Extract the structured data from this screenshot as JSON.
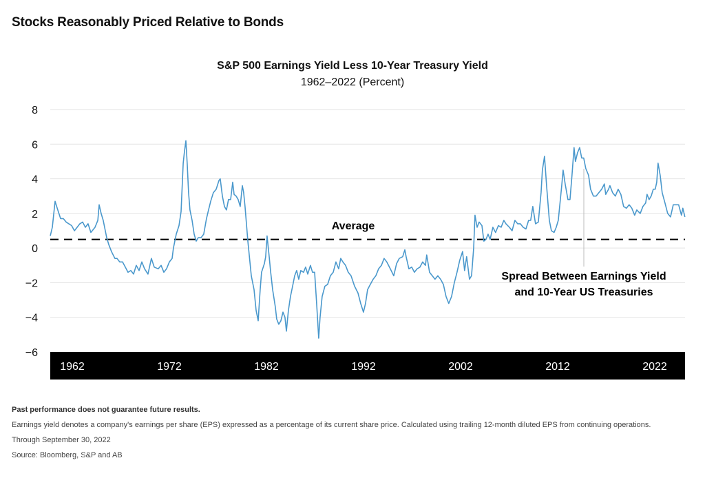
{
  "header": {
    "title": "Stocks Reasonably Priced Relative to Bonds"
  },
  "chart_data": {
    "type": "line",
    "title": "S&P 500 Earnings Yield Less 10-Year Treasury Yield",
    "subtitle": "1962–2022 (Percent)",
    "xlabel": "",
    "ylabel": "",
    "xlim": [
      1962,
      2022.75
    ],
    "ylim": [
      -6,
      8
    ],
    "y_ticks": [
      "8",
      "6",
      "4",
      "2",
      "0",
      "−2",
      "−4",
      "−6"
    ],
    "y_tick_values": [
      8,
      6,
      4,
      2,
      0,
      -2,
      -4,
      -6
    ],
    "x_tick_labels": [
      "1962",
      "1972",
      "1982",
      "1992",
      "2002",
      "2012",
      "2022"
    ],
    "grid": true,
    "line_color": "#4a98cc",
    "average": {
      "label": "Average",
      "value": 0.5
    },
    "series": [
      {
        "annotation": "Spread Between Earnings Yield\nand 10-Year US Treasuries",
        "annotation_line1": "Spread Between Earnings Yield",
        "annotation_line2": "and 10-Year US Treasuries",
        "points": [
          [
            1962.0,
            0.7
          ],
          [
            1962.2,
            1.2
          ],
          [
            1962.46,
            2.7
          ],
          [
            1962.72,
            2.2
          ],
          [
            1962.99,
            1.7
          ],
          [
            1963.25,
            1.7
          ],
          [
            1963.52,
            1.5
          ],
          [
            1963.78,
            1.4
          ],
          [
            1964.04,
            1.3
          ],
          [
            1964.31,
            1.0
          ],
          [
            1964.57,
            1.2
          ],
          [
            1964.83,
            1.4
          ],
          [
            1965.1,
            1.5
          ],
          [
            1965.36,
            1.2
          ],
          [
            1965.62,
            1.4
          ],
          [
            1965.89,
            0.9
          ],
          [
            1966.28,
            1.2
          ],
          [
            1966.55,
            1.6
          ],
          [
            1966.68,
            2.5
          ],
          [
            1966.87,
            2.0
          ],
          [
            1967.07,
            1.6
          ],
          [
            1967.4,
            0.6
          ],
          [
            1967.6,
            0.2
          ],
          [
            1967.86,
            -0.2
          ],
          [
            1968.19,
            -0.6
          ],
          [
            1968.39,
            -0.6
          ],
          [
            1968.65,
            -0.8
          ],
          [
            1968.92,
            -0.8
          ],
          [
            1969.18,
            -1.1
          ],
          [
            1969.44,
            -1.4
          ],
          [
            1969.71,
            -1.3
          ],
          [
            1969.97,
            -1.5
          ],
          [
            1970.23,
            -1.0
          ],
          [
            1970.5,
            -1.3
          ],
          [
            1970.76,
            -0.8
          ],
          [
            1971.03,
            -1.2
          ],
          [
            1971.35,
            -1.5
          ],
          [
            1971.68,
            -0.6
          ],
          [
            1971.95,
            -1.1
          ],
          [
            1972.34,
            -1.2
          ],
          [
            1972.61,
            -1.0
          ],
          [
            1972.87,
            -1.4
          ],
          [
            1973.13,
            -1.2
          ],
          [
            1973.4,
            -0.8
          ],
          [
            1973.66,
            -0.6
          ],
          [
            1973.79,
            0.0
          ],
          [
            1974.06,
            0.8
          ],
          [
            1974.32,
            1.3
          ],
          [
            1974.52,
            2.1
          ],
          [
            1974.72,
            4.9
          ],
          [
            1974.85,
            5.6
          ],
          [
            1974.98,
            6.2
          ],
          [
            1975.11,
            4.8
          ],
          [
            1975.24,
            3.2
          ],
          [
            1975.37,
            2.2
          ],
          [
            1975.57,
            1.6
          ],
          [
            1975.77,
            0.8
          ],
          [
            1975.97,
            0.4
          ],
          [
            1976.16,
            0.6
          ],
          [
            1976.43,
            0.6
          ],
          [
            1976.69,
            0.8
          ],
          [
            1976.95,
            1.7
          ],
          [
            1977.15,
            2.2
          ],
          [
            1977.35,
            2.7
          ],
          [
            1977.61,
            3.2
          ],
          [
            1977.88,
            3.4
          ],
          [
            1978.14,
            3.9
          ],
          [
            1978.27,
            4.0
          ],
          [
            1978.47,
            3.0
          ],
          [
            1978.67,
            2.4
          ],
          [
            1978.86,
            2.2
          ],
          [
            1979.06,
            2.8
          ],
          [
            1979.26,
            2.8
          ],
          [
            1979.46,
            3.8
          ],
          [
            1979.59,
            3.1
          ],
          [
            1979.79,
            3.0
          ],
          [
            1979.98,
            2.8
          ],
          [
            1980.18,
            2.4
          ],
          [
            1980.38,
            3.6
          ],
          [
            1980.51,
            3.2
          ],
          [
            1980.64,
            2.4
          ],
          [
            1980.91,
            0.4
          ],
          [
            1981.24,
            -1.6
          ],
          [
            1981.5,
            -2.4
          ],
          [
            1981.7,
            -3.6
          ],
          [
            1981.9,
            -4.2
          ],
          [
            1982.09,
            -2.4
          ],
          [
            1982.22,
            -1.4
          ],
          [
            1982.49,
            -0.9
          ],
          [
            1982.62,
            -0.5
          ],
          [
            1982.75,
            0.7
          ],
          [
            1982.95,
            -0.5
          ],
          [
            1983.08,
            -1.3
          ],
          [
            1983.28,
            -2.4
          ],
          [
            1983.54,
            -3.4
          ],
          [
            1983.67,
            -4.1
          ],
          [
            1983.87,
            -4.4
          ],
          [
            1984.07,
            -4.2
          ],
          [
            1984.27,
            -3.7
          ],
          [
            1984.46,
            -4.0
          ],
          [
            1984.6,
            -4.8
          ],
          [
            1984.79,
            -3.6
          ],
          [
            1984.99,
            -2.8
          ],
          [
            1985.19,
            -2.2
          ],
          [
            1985.39,
            -1.6
          ],
          [
            1985.58,
            -1.3
          ],
          [
            1985.78,
            -1.8
          ],
          [
            1985.98,
            -1.3
          ],
          [
            1986.24,
            -1.4
          ],
          [
            1986.44,
            -1.1
          ],
          [
            1986.64,
            -1.5
          ],
          [
            1986.9,
            -1.0
          ],
          [
            1987.1,
            -1.4
          ],
          [
            1987.3,
            -1.4
          ],
          [
            1987.49,
            -3.2
          ],
          [
            1987.69,
            -5.2
          ],
          [
            1987.82,
            -4.0
          ],
          [
            1988.02,
            -2.8
          ],
          [
            1988.28,
            -2.2
          ],
          [
            1988.55,
            -2.1
          ],
          [
            1988.81,
            -1.6
          ],
          [
            1989.08,
            -1.4
          ],
          [
            1989.34,
            -0.8
          ],
          [
            1989.6,
            -1.2
          ],
          [
            1989.8,
            -0.6
          ],
          [
            1990.0,
            -0.8
          ],
          [
            1990.26,
            -1.0
          ],
          [
            1990.52,
            -1.4
          ],
          [
            1990.79,
            -1.6
          ],
          [
            1991.12,
            -2.2
          ],
          [
            1991.45,
            -2.6
          ],
          [
            1991.71,
            -3.2
          ],
          [
            1991.97,
            -3.7
          ],
          [
            1992.17,
            -3.2
          ],
          [
            1992.37,
            -2.4
          ],
          [
            1992.63,
            -2.1
          ],
          [
            1992.9,
            -1.8
          ],
          [
            1993.16,
            -1.6
          ],
          [
            1993.42,
            -1.2
          ],
          [
            1993.69,
            -1.0
          ],
          [
            1993.95,
            -0.6
          ],
          [
            1994.21,
            -0.8
          ],
          [
            1994.54,
            -1.2
          ],
          [
            1994.87,
            -1.6
          ],
          [
            1995.14,
            -0.9
          ],
          [
            1995.4,
            -0.6
          ],
          [
            1995.73,
            -0.5
          ],
          [
            1995.93,
            -0.1
          ],
          [
            1996.06,
            -0.5
          ],
          [
            1996.32,
            -1.2
          ],
          [
            1996.59,
            -1.1
          ],
          [
            1996.85,
            -1.4
          ],
          [
            1997.11,
            -1.2
          ],
          [
            1997.38,
            -1.1
          ],
          [
            1997.64,
            -0.8
          ],
          [
            1997.9,
            -1.0
          ],
          [
            1998.03,
            -0.4
          ],
          [
            1998.3,
            -1.4
          ],
          [
            1998.56,
            -1.6
          ],
          [
            1998.82,
            -1.8
          ],
          [
            1999.09,
            -1.6
          ],
          [
            1999.35,
            -1.8
          ],
          [
            1999.62,
            -2.1
          ],
          [
            1999.88,
            -2.8
          ],
          [
            2000.14,
            -3.2
          ],
          [
            2000.41,
            -2.8
          ],
          [
            2000.67,
            -2.0
          ],
          [
            2000.93,
            -1.4
          ],
          [
            2001.19,
            -0.7
          ],
          [
            2001.46,
            -0.2
          ],
          [
            2001.65,
            -1.3
          ],
          [
            2001.85,
            -0.5
          ],
          [
            2002.12,
            -1.8
          ],
          [
            2002.32,
            -1.6
          ],
          [
            2002.52,
            0.0
          ],
          [
            2002.65,
            1.9
          ],
          [
            2002.85,
            1.2
          ],
          [
            2003.04,
            1.5
          ],
          [
            2003.31,
            1.3
          ],
          [
            2003.5,
            0.4
          ],
          [
            2003.7,
            0.5
          ],
          [
            2003.9,
            0.8
          ],
          [
            2004.1,
            0.5
          ],
          [
            2004.36,
            1.2
          ],
          [
            2004.62,
            0.9
          ],
          [
            2004.89,
            1.3
          ],
          [
            2005.15,
            1.2
          ],
          [
            2005.41,
            1.6
          ],
          [
            2005.61,
            1.4
          ],
          [
            2005.94,
            1.2
          ],
          [
            2006.2,
            1.0
          ],
          [
            2006.47,
            1.6
          ],
          [
            2006.73,
            1.4
          ],
          [
            2006.99,
            1.4
          ],
          [
            2007.26,
            1.2
          ],
          [
            2007.52,
            1.1
          ],
          [
            2007.78,
            1.6
          ],
          [
            2007.98,
            1.6
          ],
          [
            2008.18,
            2.4
          ],
          [
            2008.44,
            1.4
          ],
          [
            2008.71,
            1.5
          ],
          [
            2008.97,
            3.2
          ],
          [
            2009.1,
            4.5
          ],
          [
            2009.3,
            5.3
          ],
          [
            2009.5,
            3.6
          ],
          [
            2009.76,
            1.6
          ],
          [
            2009.96,
            1.0
          ],
          [
            2010.22,
            0.9
          ],
          [
            2010.42,
            1.2
          ],
          [
            2010.62,
            1.6
          ],
          [
            2010.82,
            2.8
          ],
          [
            2010.95,
            3.6
          ],
          [
            2011.08,
            4.5
          ],
          [
            2011.28,
            3.7
          ],
          [
            2011.54,
            2.8
          ],
          [
            2011.74,
            2.8
          ],
          [
            2011.93,
            4.2
          ],
          [
            2012.13,
            5.8
          ],
          [
            2012.26,
            5.0
          ],
          [
            2012.46,
            5.5
          ],
          [
            2012.66,
            5.8
          ],
          [
            2012.86,
            5.2
          ],
          [
            2013.05,
            5.2
          ],
          [
            2013.25,
            4.6
          ],
          [
            2013.52,
            4.2
          ],
          [
            2013.71,
            3.4
          ],
          [
            2013.98,
            3.0
          ],
          [
            2014.24,
            3.0
          ],
          [
            2014.5,
            3.2
          ],
          [
            2014.77,
            3.4
          ],
          [
            2015.03,
            3.7
          ],
          [
            2015.16,
            3.1
          ],
          [
            2015.43,
            3.4
          ],
          [
            2015.56,
            3.6
          ],
          [
            2015.82,
            3.2
          ],
          [
            2016.08,
            3.0
          ],
          [
            2016.35,
            3.4
          ],
          [
            2016.61,
            3.1
          ],
          [
            2016.87,
            2.4
          ],
          [
            2017.14,
            2.3
          ],
          [
            2017.4,
            2.5
          ],
          [
            2017.66,
            2.3
          ],
          [
            2017.93,
            1.9
          ],
          [
            2018.13,
            2.2
          ],
          [
            2018.46,
            2.0
          ],
          [
            2018.72,
            2.4
          ],
          [
            2018.98,
            2.6
          ],
          [
            2019.11,
            3.1
          ],
          [
            2019.31,
            2.8
          ],
          [
            2019.51,
            3.0
          ],
          [
            2019.71,
            3.4
          ],
          [
            2019.9,
            3.4
          ],
          [
            2020.04,
            3.8
          ],
          [
            2020.17,
            4.9
          ],
          [
            2020.37,
            4.2
          ],
          [
            2020.56,
            3.2
          ],
          [
            2020.83,
            2.6
          ],
          [
            2021.09,
            2.0
          ],
          [
            2021.36,
            1.8
          ],
          [
            2021.62,
            2.5
          ],
          [
            2021.88,
            2.5
          ],
          [
            2022.14,
            2.5
          ],
          [
            2022.41,
            1.9
          ],
          [
            2022.54,
            2.3
          ],
          [
            2022.74,
            1.8
          ]
        ]
      }
    ]
  },
  "footnotes": {
    "disclaimer": "Past performance does not guarantee future results.",
    "definition": "Earnings yield denotes a company's earnings per share (EPS) expressed as a percentage of its current share price. Calculated using trailing 12-month diluted EPS from continuing operations.",
    "through": "Through September 30, 2022",
    "source": "Source: Bloomberg, S&P and AB"
  }
}
